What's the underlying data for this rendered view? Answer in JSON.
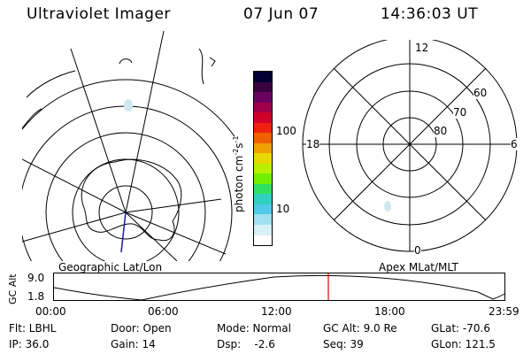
{
  "header": {
    "instrument": "Ultraviolet Imager",
    "date": "07 Jun 07",
    "time": "14:36:03 UT"
  },
  "geo_panel": {
    "label": "Geographic Lat/Lon"
  },
  "apex_panel": {
    "label": "Apex MLat/MLT",
    "mlt_labels": [
      "12",
      "18",
      "6",
      "0"
    ],
    "mlat_labels": [
      "60",
      "70",
      "80"
    ]
  },
  "colorbar": {
    "unit_label": "photon cm",
    "unit_exp1": "-2",
    "unit_mid": "s",
    "unit_exp2": "-1",
    "tick_labels": [
      "100",
      "10"
    ],
    "colors": [
      "#000033",
      "#3a0040",
      "#6a0060",
      "#a0004a",
      "#d0002a",
      "#f02010",
      "#f06000",
      "#f0a000",
      "#e8d800",
      "#b8f000",
      "#70f000",
      "#30e060",
      "#30d0c0",
      "#50c8e8",
      "#a0e0f0",
      "#d8f0f8",
      "#ffffff"
    ]
  },
  "altitude_plot": {
    "ylabel": "GC Alt",
    "y_ticks": [
      "9.0",
      "1.8"
    ],
    "x_ticks": [
      "00:00",
      "06:00",
      "12:00",
      "18:00",
      "23:59"
    ],
    "current_time_color": "#e00000"
  },
  "status": {
    "flt": "Flt: LBHL",
    "ip": "IP: 36.0",
    "door": "Door: Open",
    "gain": "Gain: 14",
    "mode": "Mode: Normal",
    "dsp": "Dsp:    -2.6",
    "gc_alt": "GC Alt: 9.0 Re",
    "seq": "Seq: 39",
    "glat": "GLat: -70.6",
    "glon": "GLon: 121.5"
  }
}
